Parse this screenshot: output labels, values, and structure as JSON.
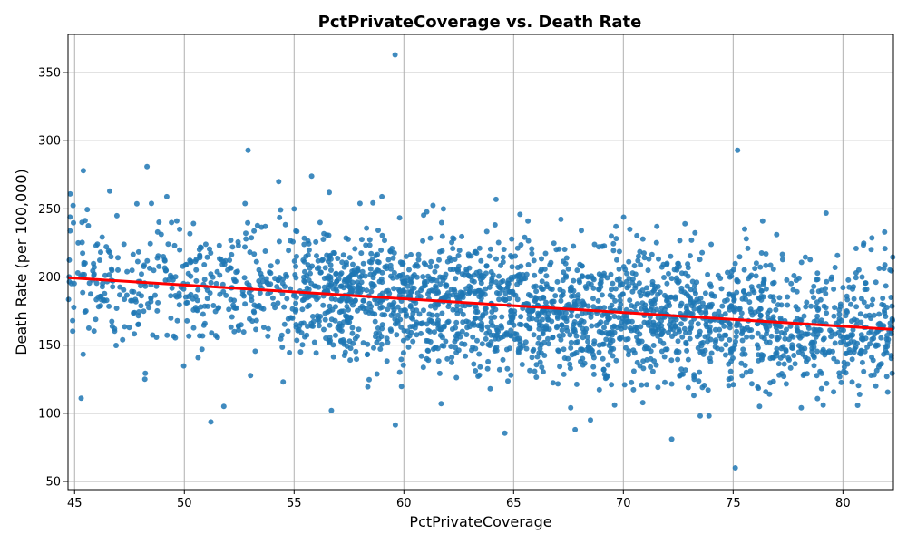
{
  "chart_data": {
    "type": "scatter",
    "title": "PctPrivateCoverage vs. Death Rate",
    "xlabel": "PctPrivateCoverage",
    "ylabel": "Death Rate (per 100,000)",
    "xlim": [
      44.7,
      82.3
    ],
    "ylim": [
      44,
      378
    ],
    "xticks": [
      45,
      50,
      55,
      60,
      65,
      70,
      75,
      80
    ],
    "yticks": [
      50,
      100,
      150,
      200,
      250,
      300,
      350
    ],
    "grid": true,
    "point_color": "#1f77b4",
    "trend_color": "#ff0000",
    "trend_line": {
      "x": [
        44.7,
        82.3
      ],
      "y": [
        199.5,
        161.5
      ]
    },
    "points_generated": {
      "count": 2600,
      "x_range": [
        44.7,
        82.3
      ],
      "mean_at_x_min": 199.5,
      "mean_at_x_max": 161.5,
      "std_dev": 24
    },
    "points": [
      {
        "x": 59.6,
        "y": 363
      },
      {
        "x": 52.9,
        "y": 293
      },
      {
        "x": 75.2,
        "y": 293
      },
      {
        "x": 48.3,
        "y": 281
      },
      {
        "x": 45.4,
        "y": 278
      },
      {
        "x": 55.8,
        "y": 274
      },
      {
        "x": 54.3,
        "y": 270
      },
      {
        "x": 46.6,
        "y": 263
      },
      {
        "x": 56.6,
        "y": 262
      },
      {
        "x": 44.8,
        "y": 261
      },
      {
        "x": 49.2,
        "y": 259
      },
      {
        "x": 59.0,
        "y": 259
      },
      {
        "x": 64.2,
        "y": 257
      },
      {
        "x": 48.5,
        "y": 254
      },
      {
        "x": 58.0,
        "y": 254
      },
      {
        "x": 61.8,
        "y": 250
      },
      {
        "x": 55.0,
        "y": 250
      },
      {
        "x": 81.9,
        "y": 233
      },
      {
        "x": 80.6,
        "y": 221
      },
      {
        "x": 75.6,
        "y": 228
      },
      {
        "x": 74.0,
        "y": 224
      },
      {
        "x": 80.6,
        "y": 203
      },
      {
        "x": 78.8,
        "y": 198
      },
      {
        "x": 45.3,
        "y": 111
      },
      {
        "x": 51.8,
        "y": 105
      },
      {
        "x": 56.7,
        "y": 102
      },
      {
        "x": 72.2,
        "y": 81
      },
      {
        "x": 75.1,
        "y": 60
      },
      {
        "x": 68.5,
        "y": 95
      },
      {
        "x": 67.8,
        "y": 88
      },
      {
        "x": 73.5,
        "y": 98
      },
      {
        "x": 73.9,
        "y": 98
      },
      {
        "x": 78.1,
        "y": 104
      },
      {
        "x": 76.2,
        "y": 105
      },
      {
        "x": 79.1,
        "y": 106
      },
      {
        "x": 61.7,
        "y": 107
      },
      {
        "x": 67.6,
        "y": 104
      },
      {
        "x": 69.6,
        "y": 106
      },
      {
        "x": 48.2,
        "y": 125
      },
      {
        "x": 54.5,
        "y": 123
      },
      {
        "x": 81.5,
        "y": 120
      },
      {
        "x": 82.0,
        "y": 127
      }
    ]
  }
}
